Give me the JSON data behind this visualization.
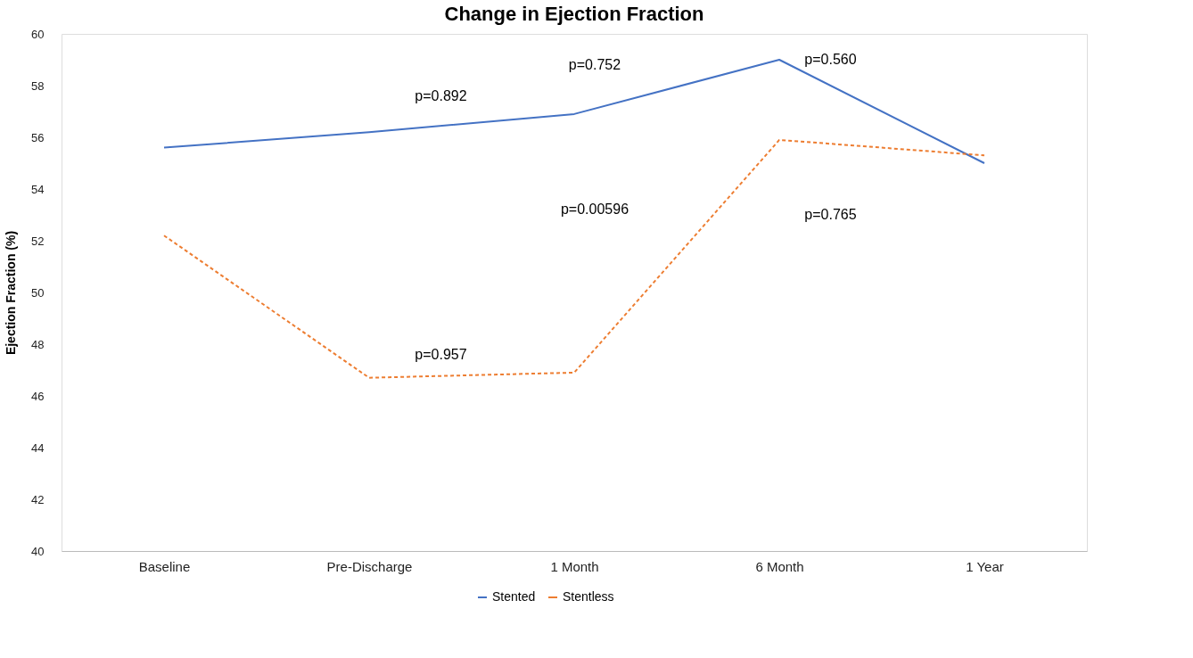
{
  "chart_data": {
    "type": "line",
    "title": "Change in Ejection Fraction",
    "ylabel": "Ejection Fraction (%)",
    "categories": [
      "Baseline",
      "Pre-Discharge",
      "1 Month",
      "6 Month",
      "1 Year"
    ],
    "series": [
      {
        "name": "Stented",
        "color": "#4472c4",
        "line_style": "solid",
        "values": [
          55.6,
          56.2,
          56.9,
          59.0,
          55.0
        ]
      },
      {
        "name": "Stentless",
        "color": "#ed7d31",
        "line_style": "dashed",
        "values": [
          52.2,
          46.7,
          46.9,
          55.9,
          55.3
        ]
      }
    ],
    "ylim": [
      40,
      60
    ],
    "yticks": [
      40,
      42,
      44,
      46,
      48,
      50,
      52,
      54,
      56,
      58,
      60
    ],
    "grid": false,
    "legend": "bottom",
    "marker": "none",
    "annotations": [
      "p=0.892",
      "p=0.957",
      "p=0.752",
      "p=0.00596",
      "p=0.560",
      "p=0.765"
    ]
  }
}
